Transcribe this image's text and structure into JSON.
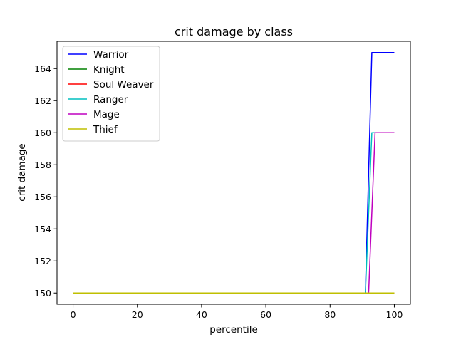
{
  "chart_data": {
    "type": "line",
    "title": "crit damage by class",
    "xlabel": "percentile",
    "ylabel": "crit damage",
    "xlim": [
      -5,
      105
    ],
    "ylim": [
      149.3,
      165.7
    ],
    "xticks": [
      0,
      20,
      40,
      60,
      80,
      100
    ],
    "yticks": [
      150,
      152,
      154,
      156,
      158,
      160,
      162,
      164
    ],
    "grid": false,
    "legend": "top-left",
    "series": [
      {
        "name": "Warrior",
        "color": "#0000ff",
        "x": [
          0,
          91,
          93,
          100
        ],
        "y": [
          150,
          150,
          165,
          165
        ]
      },
      {
        "name": "Knight",
        "color": "#008000",
        "x": [
          0,
          100
        ],
        "y": [
          150,
          150
        ]
      },
      {
        "name": "Soul Weaver",
        "color": "#ff0000",
        "x": [
          0,
          100
        ],
        "y": [
          150,
          150
        ]
      },
      {
        "name": "Ranger",
        "color": "#00bfbf",
        "x": [
          0,
          91,
          93,
          100
        ],
        "y": [
          150,
          150,
          160,
          160
        ]
      },
      {
        "name": "Mage",
        "color": "#bf00bf",
        "x": [
          0,
          92,
          94,
          100
        ],
        "y": [
          150,
          150,
          160,
          160
        ]
      },
      {
        "name": "Thief",
        "color": "#bfbf00",
        "x": [
          0,
          100
        ],
        "y": [
          150,
          150
        ]
      }
    ]
  }
}
